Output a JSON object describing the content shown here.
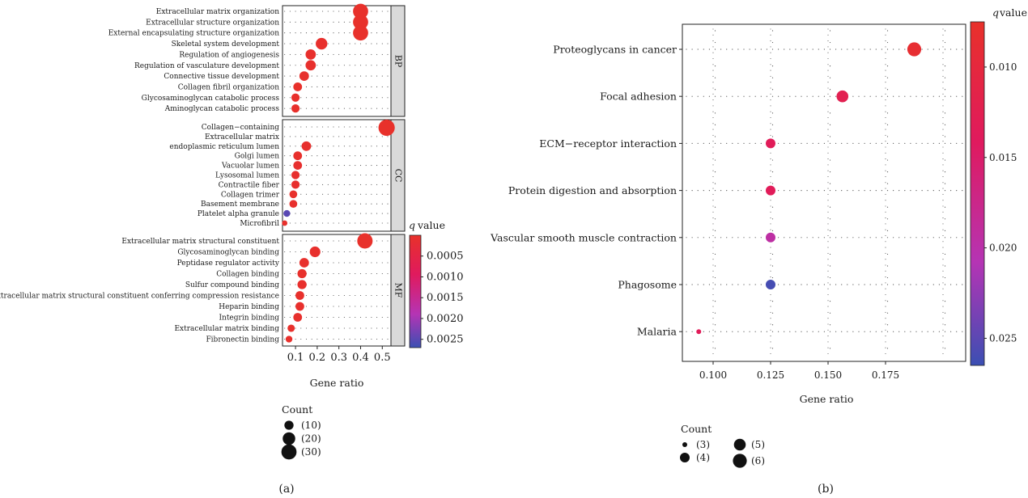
{
  "chart_data": [
    {
      "type": "scatter",
      "caption": "(a)",
      "xlabel": "Gene ratio",
      "xticks": [
        0.1,
        0.2,
        0.3,
        0.4,
        0.5
      ],
      "xlim": [
        0.04,
        0.54
      ],
      "panels": [
        {
          "name": "BP",
          "terms": [
            {
              "label": "Extracellular matrix organization",
              "ratio": 0.4,
              "count": 30,
              "q": 1e-05
            },
            {
              "label": "Extracellular structure organization",
              "ratio": 0.4,
              "count": 30,
              "q": 1e-05
            },
            {
              "label": "External encapsulating structure organization",
              "ratio": 0.4,
              "count": 30,
              "q": 1e-05
            },
            {
              "label": "Skeletal system development",
              "ratio": 0.22,
              "count": 17,
              "q": 5e-05
            },
            {
              "label": "Regulation of angiogenesis",
              "ratio": 0.17,
              "count": 13,
              "q": 5e-05
            },
            {
              "label": "Regulation of vasculature development",
              "ratio": 0.17,
              "count": 13,
              "q": 5e-05
            },
            {
              "label": "Connective tissue development",
              "ratio": 0.14,
              "count": 11,
              "q": 6e-05
            },
            {
              "label": "Collagen fibril organization",
              "ratio": 0.11,
              "count": 9,
              "q": 2e-05
            },
            {
              "label": "Glycosaminoglycan catabolic process",
              "ratio": 0.1,
              "count": 8,
              "q": 4e-05
            },
            {
              "label": "Aminoglycan catabolic process",
              "ratio": 0.1,
              "count": 8,
              "q": 4e-05
            }
          ]
        },
        {
          "name": "CC",
          "terms": [
            {
              "label": "Collagen−containing",
              "ratio": 0.52,
              "count": 35,
              "q": 1e-05
            },
            {
              "label": "Extracellular matrix",
              "ratio": null,
              "count": null,
              "q": null
            },
            {
              "label": "endoplasmic reticulum lumen",
              "ratio": 0.15,
              "count": 11,
              "q": 6e-05
            },
            {
              "label": "Golgi lumen",
              "ratio": 0.11,
              "count": 9,
              "q": 4e-05
            },
            {
              "label": "Vacuolar lumen",
              "ratio": 0.11,
              "count": 9,
              "q": 8e-05
            },
            {
              "label": "Lysosomal lumen",
              "ratio": 0.1,
              "count": 8,
              "q": 8e-05
            },
            {
              "label": "Contractile fiber",
              "ratio": 0.1,
              "count": 8,
              "q": 8e-05
            },
            {
              "label": "Collagen trimer",
              "ratio": 0.09,
              "count": 7,
              "q": 4e-05
            },
            {
              "label": "Basement membrane",
              "ratio": 0.09,
              "count": 7,
              "q": 5e-05
            },
            {
              "label": "Platelet alpha granule",
              "ratio": 0.06,
              "count": 5,
              "q": 0.0025
            },
            {
              "label": "Microfibril",
              "ratio": 0.05,
              "count": 3,
              "q": 6e-05
            }
          ]
        },
        {
          "name": "MF",
          "terms": [
            {
              "label": "Extracellular matrix structural constituent",
              "ratio": 0.42,
              "count": 31,
              "q": 1e-05
            },
            {
              "label": "Glycosaminoglycan binding",
              "ratio": 0.19,
              "count": 14,
              "q": 5e-05
            },
            {
              "label": "Peptidase regulator activity",
              "ratio": 0.14,
              "count": 11,
              "q": 5e-05
            },
            {
              "label": "Collagen binding",
              "ratio": 0.13,
              "count": 10,
              "q": 3e-05
            },
            {
              "label": "Sulfur compound binding",
              "ratio": 0.13,
              "count": 10,
              "q": 5e-05
            },
            {
              "label": "Extracellular matrix structural constituent conferring compression resistance",
              "ratio": 0.12,
              "count": 9,
              "q": 3e-05
            },
            {
              "label": "Heparin binding",
              "ratio": 0.12,
              "count": 9,
              "q": 5e-05
            },
            {
              "label": "Integrin binding",
              "ratio": 0.11,
              "count": 9,
              "q": 6e-05
            },
            {
              "label": "Extracellular matrix binding",
              "ratio": 0.08,
              "count": 6,
              "q": 4e-05
            },
            {
              "label": "Fibronectin binding",
              "ratio": 0.07,
              "count": 5,
              "q": 4e-05
            }
          ]
        }
      ],
      "colorbar": {
        "title_italic": "q",
        "title_rest": " value",
        "ticks": [
          0.0005,
          0.001,
          0.0015,
          0.002,
          0.0025
        ],
        "tick_labels": [
          "0.0005",
          "0.0010",
          "0.0015",
          "0.0020",
          "0.0025"
        ],
        "range": [
          0.0,
          0.0027
        ],
        "colors": [
          "#e8312a",
          "#e01a5e",
          "#b534b4",
          "#3b4fb3"
        ]
      },
      "size_legend": {
        "title": "Count",
        "entries": [
          {
            "label": "(10)",
            "value": 10
          },
          {
            "label": "(20)",
            "value": 20
          },
          {
            "label": "(30)",
            "value": 30
          }
        ]
      }
    },
    {
      "type": "scatter",
      "caption": "(b)",
      "xlabel": "Gene ratio",
      "xticks": [
        0.1,
        0.125,
        0.15,
        0.175
      ],
      "xtick_labels": [
        "0.100",
        "0.125",
        "0.150",
        "0.175"
      ],
      "xlim": [
        0.09,
        0.19
      ],
      "terms": [
        {
          "label": "Proteoglycans in cancer",
          "ratio": 0.1875,
          "count": 6,
          "q": 0.0085
        },
        {
          "label": "Focal adhesion",
          "ratio": 0.15625,
          "count": 5,
          "q": 0.0125
        },
        {
          "label": "ECM−receptor interaction",
          "ratio": 0.125,
          "count": 4,
          "q": 0.0135
        },
        {
          "label": "Protein digestion and absorption",
          "ratio": 0.125,
          "count": 4,
          "q": 0.0135
        },
        {
          "label": "Vascular smooth muscle contraction",
          "ratio": 0.125,
          "count": 4,
          "q": 0.0195
        },
        {
          "label": "Phagosome",
          "ratio": 0.125,
          "count": 4,
          "q": 0.026
        },
        {
          "label": "Malaria",
          "ratio": 0.09375,
          "count": 3,
          "q": 0.0135
        }
      ],
      "colorbar": {
        "title_italic": "q",
        "title_rest": " value",
        "ticks": [
          0.01,
          0.015,
          0.02,
          0.025
        ],
        "tick_labels": [
          "0.010",
          "0.015",
          "0.020",
          "0.025"
        ],
        "range": [
          0.0075,
          0.0265
        ],
        "colors": [
          "#e8312a",
          "#e01a5e",
          "#b534b4",
          "#3b4fb3"
        ]
      },
      "size_legend": {
        "title": "Count",
        "entries": [
          {
            "label": "(3)",
            "value": 3
          },
          {
            "label": "(4)",
            "value": 4
          },
          {
            "label": "(5)",
            "value": 5
          },
          {
            "label": "(6)",
            "value": 6
          }
        ]
      }
    }
  ]
}
